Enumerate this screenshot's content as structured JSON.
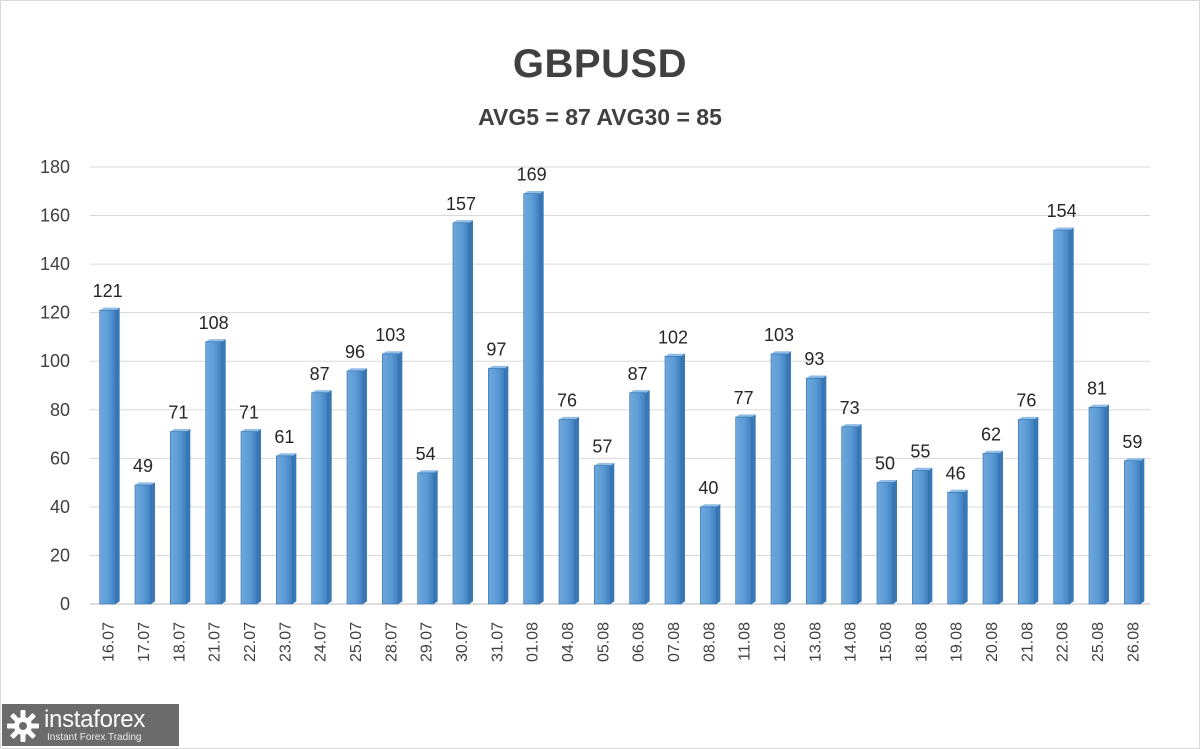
{
  "header": {
    "title": "GBPUSD",
    "subtitle": "AVG5 = 87 AVG30 = 85"
  },
  "logo": {
    "name": "instaforex",
    "tagline": "Instant Forex Trading",
    "icon": "gear-icon"
  },
  "colors": {
    "bar": "#5b9bd5",
    "bar_dark": "#3a78b5",
    "text": "#404040",
    "grid": "#d9d9d9"
  },
  "chart_data": {
    "type": "bar",
    "title": "GBPUSD",
    "subtitle": "AVG5 = 87 AVG30 = 85",
    "categories": [
      "16.07",
      "17.07",
      "18.07",
      "21.07",
      "22.07",
      "23.07",
      "24.07",
      "25.07",
      "28.07",
      "29.07",
      "30.07",
      "31.07",
      "01.08",
      "04.08",
      "05.08",
      "06.08",
      "07.08",
      "08.08",
      "11.08",
      "12.08",
      "13.08",
      "14.08",
      "15.08",
      "18.08",
      "19.08",
      "20.08",
      "21.08",
      "22.08",
      "25.08",
      "26.08"
    ],
    "values": [
      121,
      49,
      71,
      108,
      71,
      61,
      87,
      96,
      103,
      54,
      157,
      97,
      169,
      76,
      57,
      87,
      102,
      40,
      77,
      103,
      93,
      73,
      50,
      55,
      46,
      62,
      76,
      154,
      81,
      59
    ],
    "ylim": [
      0,
      180
    ],
    "yticks": [
      0,
      20,
      40,
      60,
      80,
      100,
      120,
      140,
      160,
      180
    ],
    "grid": true,
    "data_labels": true,
    "xlabel": "",
    "ylabel": ""
  }
}
